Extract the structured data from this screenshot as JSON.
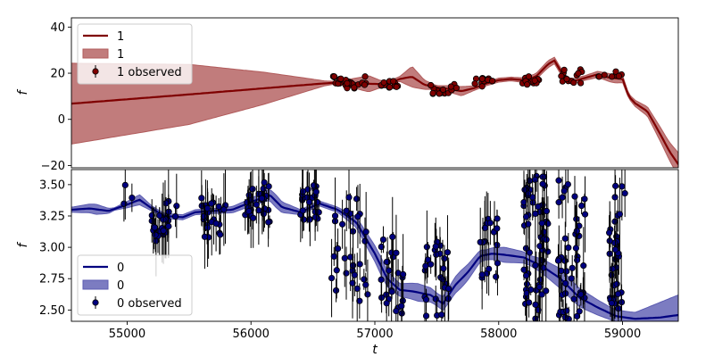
{
  "chart_data": [
    {
      "type": "line",
      "panel": "top",
      "ylabel": "f",
      "xlim": [
        54550,
        59450
      ],
      "ylim": [
        -21,
        44
      ],
      "yticks": [
        -20,
        0,
        20,
        40
      ],
      "colors": {
        "line": "#7f0000",
        "band": "#b15b5b",
        "points": "#7f0000"
      },
      "legend": {
        "placement": "upper-left",
        "line_label": "1",
        "band_label": "1",
        "points_label": "1 observed"
      },
      "mean": [
        [
          54550,
          6.8
        ],
        [
          55500,
          10.8
        ],
        [
          56500,
          15.2
        ],
        [
          56700,
          16.0
        ],
        [
          56900,
          15.5
        ],
        [
          57100,
          15.2
        ],
        [
          57200,
          17.5
        ],
        [
          57300,
          18.5
        ],
        [
          57400,
          15.0
        ],
        [
          57500,
          13.8
        ],
        [
          57600,
          13.2
        ],
        [
          57700,
          12.2
        ],
        [
          57800,
          13.5
        ],
        [
          57900,
          15.5
        ],
        [
          58000,
          17.0
        ],
        [
          58100,
          17.5
        ],
        [
          58200,
          17.0
        ],
        [
          58300,
          18.5
        ],
        [
          58400,
          24.0
        ],
        [
          58450,
          25.5
        ],
        [
          58500,
          21.0
        ],
        [
          58550,
          17.0
        ],
        [
          58600,
          16.5
        ],
        [
          58700,
          18.0
        ],
        [
          58800,
          19.5
        ],
        [
          58900,
          18.0
        ],
        [
          59000,
          17.5
        ],
        [
          59050,
          10.0
        ],
        [
          59100,
          7.0
        ],
        [
          59200,
          3.5
        ],
        [
          59300,
          -6.0
        ],
        [
          59380,
          -14.0
        ],
        [
          59450,
          -19.5
        ]
      ],
      "halfwidth": [
        [
          54550,
          17.5
        ],
        [
          55500,
          13.0
        ],
        [
          56100,
          7.0
        ],
        [
          56600,
          1.0
        ],
        [
          56700,
          0.5
        ],
        [
          56950,
          3.5
        ],
        [
          57050,
          1.5
        ],
        [
          57200,
          1.0
        ],
        [
          57300,
          4.5
        ],
        [
          57400,
          2.0
        ],
        [
          57500,
          0.8
        ],
        [
          57700,
          2.0
        ],
        [
          57800,
          1.0
        ],
        [
          58100,
          0.8
        ],
        [
          58400,
          1.5
        ],
        [
          58700,
          1.0
        ],
        [
          58850,
          1.5
        ],
        [
          58950,
          2.0
        ],
        [
          59050,
          1.0
        ],
        [
          59200,
          2.0
        ],
        [
          59350,
          3.5
        ],
        [
          59450,
          5.0
        ]
      ],
      "observed_clusters": [
        {
          "start": 56650,
          "end": 56930,
          "count": 26,
          "y_min": 13,
          "y_max": 19
        },
        {
          "start": 57050,
          "end": 57200,
          "count": 12,
          "y_min": 13.5,
          "y_max": 17
        },
        {
          "start": 57450,
          "end": 57680,
          "count": 16,
          "y_min": 11,
          "y_max": 16
        },
        {
          "start": 57800,
          "end": 57950,
          "count": 12,
          "y_min": 14,
          "y_max": 18
        },
        {
          "start": 58180,
          "end": 58330,
          "count": 12,
          "y_min": 15,
          "y_max": 19
        },
        {
          "start": 58500,
          "end": 58680,
          "count": 14,
          "y_min": 15,
          "y_max": 22
        },
        {
          "start": 58780,
          "end": 59000,
          "count": 8,
          "y_min": 17,
          "y_max": 21
        }
      ]
    },
    {
      "type": "line",
      "panel": "bottom",
      "xlabel": "t",
      "ylabel": "f",
      "xlim": [
        54550,
        59450
      ],
      "ylim": [
        2.41,
        3.62
      ],
      "xticks": [
        55000,
        56000,
        57000,
        58000,
        59000
      ],
      "yticks": [
        2.5,
        2.75,
        3.0,
        3.25,
        3.5
      ],
      "colors": {
        "line": "#00007f",
        "band": "#5b5bb1",
        "points": "#00007f"
      },
      "legend": {
        "placement": "lower-left",
        "line_label": "0",
        "band_label": "0",
        "points_label": "0 observed"
      },
      "mean": [
        [
          54550,
          3.3
        ],
        [
          54700,
          3.31
        ],
        [
          54850,
          3.29
        ],
        [
          55000,
          3.34
        ],
        [
          55100,
          3.38
        ],
        [
          55200,
          3.31
        ],
        [
          55300,
          3.25
        ],
        [
          55450,
          3.24
        ],
        [
          55550,
          3.28
        ],
        [
          55700,
          3.29
        ],
        [
          55850,
          3.3
        ],
        [
          56000,
          3.36
        ],
        [
          56150,
          3.42
        ],
        [
          56250,
          3.32
        ],
        [
          56400,
          3.28
        ],
        [
          56550,
          3.35
        ],
        [
          56700,
          3.3
        ],
        [
          56850,
          3.2
        ],
        [
          57000,
          2.95
        ],
        [
          57100,
          2.75
        ],
        [
          57200,
          2.66
        ],
        [
          57300,
          2.65
        ],
        [
          57450,
          2.62
        ],
        [
          57550,
          2.55
        ],
        [
          57650,
          2.7
        ],
        [
          57750,
          2.8
        ],
        [
          57850,
          2.93
        ],
        [
          57950,
          2.95
        ],
        [
          58050,
          2.94
        ],
        [
          58200,
          2.92
        ],
        [
          58350,
          2.85
        ],
        [
          58500,
          2.75
        ],
        [
          58650,
          2.6
        ],
        [
          58800,
          2.52
        ],
        [
          58950,
          2.45
        ],
        [
          59100,
          2.43
        ],
        [
          59300,
          2.44
        ],
        [
          59450,
          2.46
        ]
      ],
      "halfwidth": [
        [
          54550,
          0.02
        ],
        [
          54750,
          0.04
        ],
        [
          54900,
          0.01
        ],
        [
          55100,
          0.04
        ],
        [
          55200,
          0.02
        ],
        [
          55450,
          0.02
        ],
        [
          55700,
          0.02
        ],
        [
          56000,
          0.03
        ],
        [
          56200,
          0.05
        ],
        [
          56400,
          0.02
        ],
        [
          56700,
          0.02
        ],
        [
          56900,
          0.05
        ],
        [
          57050,
          0.07
        ],
        [
          57200,
          0.05
        ],
        [
          57350,
          0.07
        ],
        [
          57500,
          0.05
        ],
        [
          57700,
          0.07
        ],
        [
          57900,
          0.04
        ],
        [
          58050,
          0.06
        ],
        [
          58250,
          0.04
        ],
        [
          58500,
          0.08
        ],
        [
          58700,
          0.07
        ],
        [
          58900,
          0.05
        ],
        [
          59100,
          0.05
        ],
        [
          59300,
          0.12
        ],
        [
          59450,
          0.16
        ]
      ],
      "observed_clusters": [
        {
          "start": 54950,
          "end": 55050,
          "count": 3,
          "y_min": 3.34,
          "y_max": 3.5
        },
        {
          "start": 55200,
          "end": 55400,
          "count": 26,
          "y_min": 3.05,
          "y_max": 3.38
        },
        {
          "start": 55600,
          "end": 55800,
          "count": 24,
          "y_min": 3.08,
          "y_max": 3.4
        },
        {
          "start": 55950,
          "end": 56150,
          "count": 28,
          "y_min": 3.2,
          "y_max": 3.52
        },
        {
          "start": 56400,
          "end": 56550,
          "count": 24,
          "y_min": 3.2,
          "y_max": 3.5
        },
        {
          "start": 56650,
          "end": 56950,
          "count": 30,
          "y_min": 2.55,
          "y_max": 3.45
        },
        {
          "start": 57050,
          "end": 57230,
          "count": 24,
          "y_min": 2.45,
          "y_max": 3.15
        },
        {
          "start": 57400,
          "end": 57600,
          "count": 26,
          "y_min": 2.45,
          "y_max": 3.05
        },
        {
          "start": 57850,
          "end": 58000,
          "count": 18,
          "y_min": 2.75,
          "y_max": 3.25
        },
        {
          "start": 58200,
          "end": 58400,
          "count": 60,
          "y_min": 2.42,
          "y_max": 3.6
        },
        {
          "start": 58480,
          "end": 58700,
          "count": 45,
          "y_min": 2.42,
          "y_max": 3.55
        },
        {
          "start": 58880,
          "end": 59020,
          "count": 34,
          "y_min": 2.42,
          "y_max": 3.5
        }
      ]
    }
  ]
}
